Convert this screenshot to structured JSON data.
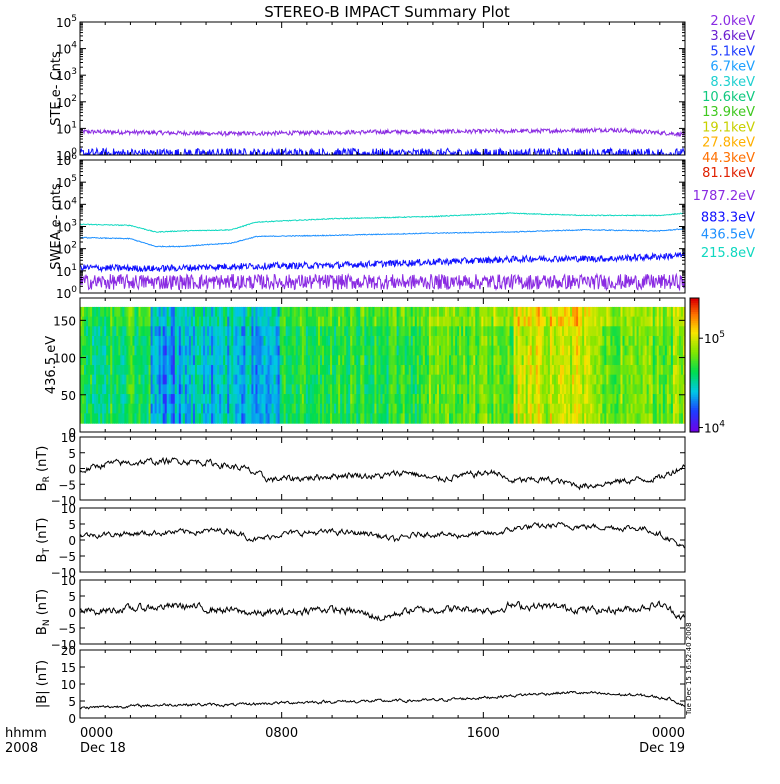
{
  "title": "STEREO-B IMPACT Summary Plot",
  "footer": {
    "axis_label_line1": "hhmm",
    "axis_label_line2": "2008",
    "stamp": "Tue Dec 15 16:52:40 2008"
  },
  "colors": {
    "frame": "#000000",
    "trace": "#000000",
    "background": "#ffffff"
  },
  "legend": [
    {
      "label": "2.0keV",
      "color": "#8a2be2"
    },
    {
      "label": "3.6keV",
      "color": "#6a1fd0"
    },
    {
      "label": "5.1keV",
      "color": "#1e3cff"
    },
    {
      "label": "6.7keV",
      "color": "#1ea0ff"
    },
    {
      "label": "8.3keV",
      "color": "#20d0d0"
    },
    {
      "label": "10.6keV",
      "color": "#10c880"
    },
    {
      "label": "13.9keV",
      "color": "#40c820"
    },
    {
      "label": "19.1keV",
      "color": "#c8d000"
    },
    {
      "label": "27.8keV",
      "color": "#ffb000"
    },
    {
      "label": "44.3keV",
      "color": "#ff7000"
    },
    {
      "label": "81.1keV",
      "color": "#e02000"
    },
    {
      "label": "1787.2eV",
      "color": "#8a2be2"
    },
    {
      "label": "883.3eV",
      "color": "#1010ff"
    },
    {
      "label": "436.5eV",
      "color": "#1e90ff"
    },
    {
      "label": "215.8eV",
      "color": "#10d8c0"
    }
  ],
  "chart_data": [
    {
      "type": "line",
      "id": "ste",
      "ylabel": "STE e- Cnts",
      "yscale": "log",
      "ylim_exp": [
        0,
        5
      ],
      "ytick_exps": [
        0,
        1,
        2,
        3,
        4,
        5
      ],
      "xlim_hours": [
        0,
        24
      ],
      "series": [
        {
          "color": "#8a2be2",
          "base_exp": 0.85,
          "noise": 0.08,
          "points": [
            [
              0,
              0.88
            ],
            [
              6,
              0.8
            ],
            [
              12,
              0.87
            ],
            [
              18,
              0.9
            ],
            [
              21,
              0.95
            ],
            [
              24,
              0.78
            ]
          ]
        },
        {
          "color": "#1010ff",
          "base_exp": 0.05,
          "noise": 0.2,
          "points": [
            [
              0,
              0.05
            ],
            [
              24,
              0.05
            ]
          ]
        }
      ]
    },
    {
      "type": "line",
      "id": "swea",
      "ylabel": "SWEA e- cnts",
      "yscale": "log",
      "ylim_exp": [
        0,
        6
      ],
      "ytick_exps": [
        0,
        1,
        2,
        3,
        4,
        5,
        6
      ],
      "xlim_hours": [
        0,
        24
      ],
      "series": [
        {
          "color": "#10d8c0",
          "noise": 0.02,
          "points": [
            [
              0,
              3.1
            ],
            [
              2,
              3.05
            ],
            [
              3,
              2.75
            ],
            [
              4,
              2.8
            ],
            [
              6,
              2.85
            ],
            [
              7,
              3.2
            ],
            [
              10,
              3.35
            ],
            [
              14,
              3.45
            ],
            [
              17,
              3.6
            ],
            [
              20,
              3.5
            ],
            [
              23,
              3.5
            ],
            [
              24,
              3.6
            ]
          ]
        },
        {
          "color": "#1e90ff",
          "noise": 0.02,
          "points": [
            [
              0,
              2.5
            ],
            [
              2,
              2.45
            ],
            [
              3,
              2.1
            ],
            [
              4,
              2.1
            ],
            [
              6,
              2.25
            ],
            [
              7,
              2.55
            ],
            [
              10,
              2.6
            ],
            [
              14,
              2.7
            ],
            [
              17,
              2.75
            ],
            [
              20,
              2.85
            ],
            [
              23,
              2.8
            ],
            [
              24,
              2.9
            ]
          ]
        },
        {
          "color": "#1010ff",
          "noise": 0.15,
          "points": [
            [
              0,
              1.15
            ],
            [
              3,
              1.1
            ],
            [
              6,
              1.2
            ],
            [
              10,
              1.25
            ],
            [
              14,
              1.4
            ],
            [
              18,
              1.55
            ],
            [
              21,
              1.55
            ],
            [
              24,
              1.7
            ]
          ]
        },
        {
          "color": "#8a2be2",
          "noise": 0.35,
          "points": [
            [
              0,
              0.5
            ],
            [
              24,
              0.5
            ]
          ]
        }
      ]
    },
    {
      "type": "heatmap",
      "id": "pad",
      "ylabel": "436.5 eV",
      "ylim": [
        0,
        180
      ],
      "yticks": [
        0,
        50,
        100,
        150
      ],
      "xlim_hours": [
        0,
        24
      ],
      "colorbar": {
        "min_exp": 3.95,
        "max_exp": 5.45,
        "tick_exps": [
          4,
          5
        ],
        "tick_labels": [
          "10⁴",
          "10⁵"
        ]
      },
      "columns": [
        {
          "from": 0,
          "to": 2.8,
          "mean": 0.45
        },
        {
          "from": 2.8,
          "to": 4.0,
          "mean": 0.25
        },
        {
          "from": 4.0,
          "to": 7.9,
          "mean": 0.3
        },
        {
          "from": 7.9,
          "to": 13.5,
          "mean": 0.48
        },
        {
          "from": 13.5,
          "to": 16.8,
          "mean": 0.56
        },
        {
          "from": 16.8,
          "to": 17.2,
          "mean": 0.5
        },
        {
          "from": 17.2,
          "to": 20.5,
          "mean": 0.68
        },
        {
          "from": 20.5,
          "to": 24,
          "mean": 0.58
        }
      ]
    },
    {
      "type": "line",
      "id": "br",
      "ylabel": "BR (nT)",
      "ylabel_main": "B",
      "ylabel_sub": "R",
      "ylabel_unit": " (nT)",
      "ylim": [
        -10,
        10
      ],
      "yticks": [
        -10,
        -5,
        0,
        5,
        10
      ],
      "ytick_labels": [
        "−10",
        "−5",
        "0",
        "5",
        "10"
      ],
      "xlim_hours": [
        0,
        24
      ],
      "series": [
        {
          "color": "#000000",
          "noise": 0.8,
          "points": [
            [
              0,
              -1
            ],
            [
              1,
              1.5
            ],
            [
              2.5,
              2
            ],
            [
              4,
              2.5
            ],
            [
              5,
              2
            ],
            [
              6.5,
              0
            ],
            [
              7.5,
              -3.5
            ],
            [
              9,
              -3
            ],
            [
              10.5,
              -2
            ],
            [
              12,
              -2.5
            ],
            [
              13,
              -1
            ],
            [
              14,
              -3.5
            ],
            [
              15.5,
              -2
            ],
            [
              16.5,
              -1
            ],
            [
              17,
              -4
            ],
            [
              18.5,
              -3.5
            ],
            [
              20,
              -5.5
            ],
            [
              21.5,
              -4
            ],
            [
              23,
              -3
            ],
            [
              24,
              1
            ]
          ]
        }
      ]
    },
    {
      "type": "line",
      "id": "bt",
      "ylabel": "BT (nT)",
      "ylabel_main": "B",
      "ylabel_sub": "T",
      "ylabel_unit": " (nT)",
      "ylim": [
        -10,
        10
      ],
      "yticks": [
        -10,
        -5,
        0,
        5,
        10
      ],
      "ytick_labels": [
        "−10",
        "−5",
        "0",
        "5",
        "10"
      ],
      "xlim_hours": [
        0,
        24
      ],
      "series": [
        {
          "color": "#000000",
          "noise": 0.7,
          "points": [
            [
              0,
              1.5
            ],
            [
              2,
              2
            ],
            [
              4,
              2.5
            ],
            [
              6,
              3
            ],
            [
              7,
              0
            ],
            [
              8,
              2
            ],
            [
              10,
              2.5
            ],
            [
              11.5,
              2
            ],
            [
              12.5,
              0
            ],
            [
              13.5,
              2
            ],
            [
              15,
              1.5
            ],
            [
              16.5,
              2
            ],
            [
              17.5,
              4
            ],
            [
              19,
              4.5
            ],
            [
              21,
              4
            ],
            [
              22.5,
              3.5
            ],
            [
              23.5,
              0
            ],
            [
              24,
              -3
            ]
          ]
        }
      ]
    },
    {
      "type": "line",
      "id": "bn",
      "ylabel": "BN (nT)",
      "ylabel_main": "B",
      "ylabel_sub": "N",
      "ylabel_unit": " (nT)",
      "ylim": [
        -10,
        10
      ],
      "yticks": [
        -10,
        -5,
        0,
        5,
        10
      ],
      "ytick_labels": [
        "−10",
        "−5",
        "0",
        "5",
        "10"
      ],
      "xlim_hours": [
        0,
        24
      ],
      "series": [
        {
          "color": "#000000",
          "noise": 0.9,
          "points": [
            [
              0,
              0
            ],
            [
              2,
              1
            ],
            [
              4,
              2
            ],
            [
              5,
              1
            ],
            [
              6,
              0.5
            ],
            [
              7,
              -0.5
            ],
            [
              8.5,
              0
            ],
            [
              9.5,
              1
            ],
            [
              11,
              0
            ],
            [
              12,
              -2
            ],
            [
              13,
              0.5
            ],
            [
              15,
              1
            ],
            [
              16.5,
              0.5
            ],
            [
              17,
              2
            ],
            [
              19,
              1.5
            ],
            [
              20.5,
              0.5
            ],
            [
              22,
              1
            ],
            [
              23,
              2.5
            ],
            [
              24,
              -2
            ]
          ]
        }
      ]
    },
    {
      "type": "line",
      "id": "bmag",
      "ylabel": "|B| (nT)",
      "ylabel_main": "|B|",
      "ylabel_sub": "",
      "ylabel_unit": " (nT)",
      "ylim": [
        0,
        20
      ],
      "yticks": [
        0,
        5,
        10,
        15,
        20
      ],
      "ytick_labels": [
        "0",
        "5",
        "10",
        "15",
        "20"
      ],
      "xlim_hours": [
        0,
        24
      ],
      "series": [
        {
          "color": "#000000",
          "noise": 0.35,
          "points": [
            [
              0,
              3
            ],
            [
              2,
              3.5
            ],
            [
              4,
              4
            ],
            [
              6,
              3.8
            ],
            [
              8,
              4.5
            ],
            [
              10,
              4.8
            ],
            [
              12,
              5
            ],
            [
              14,
              5.2
            ],
            [
              16,
              6
            ],
            [
              18,
              7
            ],
            [
              19.5,
              7.5
            ],
            [
              21,
              7
            ],
            [
              22.5,
              6.5
            ],
            [
              23.5,
              5.5
            ],
            [
              24,
              3.5
            ]
          ]
        }
      ]
    }
  ],
  "x_axis": {
    "ticks": [
      {
        "hour": 0,
        "line1": "0000",
        "line2": "Dec 18"
      },
      {
        "hour": 8,
        "line1": "0800",
        "line2": ""
      },
      {
        "hour": 16,
        "line1": "1600",
        "line2": ""
      },
      {
        "hour": 24,
        "line1": "0000",
        "line2": "Dec 19"
      }
    ]
  }
}
